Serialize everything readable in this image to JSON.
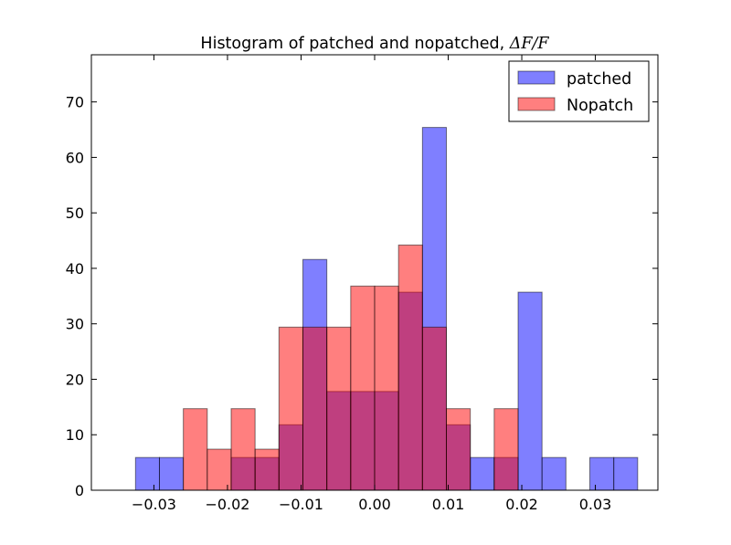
{
  "chart_data": {
    "type": "bar",
    "title_prefix": "Histogram of patched and nopatched, ",
    "title_math": "ΔF/F",
    "xlabel": "",
    "ylabel": "",
    "xlim": [
      -0.0385,
      0.0385
    ],
    "ylim": [
      0,
      78.5
    ],
    "xticks": [
      -0.03,
      -0.02,
      -0.01,
      0.0,
      0.01,
      0.02,
      0.03
    ],
    "xtick_labels": [
      "−0.03",
      "−0.02",
      "−0.01",
      "0.00",
      "0.01",
      "0.02",
      "0.03"
    ],
    "yticks": [
      0,
      10,
      20,
      30,
      40,
      50,
      60,
      70
    ],
    "ytick_labels": [
      "0",
      "10",
      "20",
      "30",
      "40",
      "50",
      "60",
      "70"
    ],
    "grid": false,
    "legend_position": "top-right",
    "series": [
      {
        "name": "patched",
        "color": "#0000ff",
        "alpha": 0.5,
        "bin_start": -0.0325,
        "bin_width": 0.00325,
        "values": [
          5.9,
          5.9,
          0,
          0,
          5.9,
          5.9,
          11.8,
          41.6,
          17.8,
          17.8,
          17.8,
          35.7,
          65.4,
          11.8,
          5.9,
          5.9,
          35.7,
          5.9,
          0,
          5.9,
          5.9
        ]
      },
      {
        "name": "Nopatch",
        "color": "#ff0000",
        "alpha": 0.5,
        "bin_start": -0.026,
        "bin_width": 0.00325,
        "values": [
          14.7,
          7.4,
          14.7,
          7.4,
          29.4,
          29.4,
          29.4,
          36.8,
          36.8,
          44.2,
          29.4,
          14.7,
          0,
          14.7
        ]
      }
    ]
  }
}
